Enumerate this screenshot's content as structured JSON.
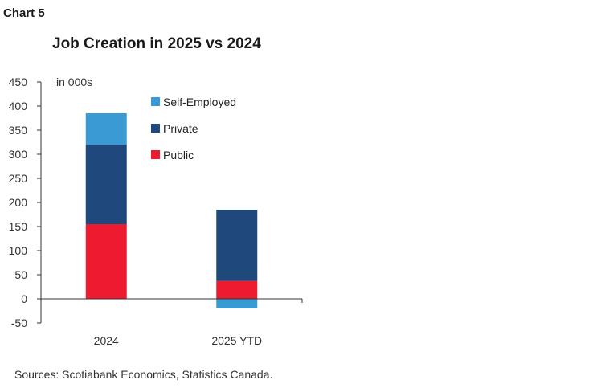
{
  "header": {
    "chart_label": "Chart 5",
    "title": "Job Creation in 2025 vs 2024"
  },
  "source": "Sources: Scotiabank Economics, Statistics Canada.",
  "chart_data": {
    "type": "bar",
    "stacked": true,
    "title": "Job Creation in 2025 vs 2024",
    "unit_label": "in 000s",
    "categories": [
      "2024",
      "2025 YTD"
    ],
    "series": [
      {
        "name": "Public",
        "color": "#ed1b2f",
        "values": [
          155,
          37
        ]
      },
      {
        "name": "Private",
        "color": "#1f497d",
        "values": [
          165,
          148
        ]
      },
      {
        "name": "Self-Employed",
        "color": "#3a9ad3",
        "values": [
          65,
          -20
        ]
      }
    ],
    "legend_order": [
      "Self-Employed",
      "Private",
      "Public"
    ],
    "ylim": [
      -50,
      450
    ],
    "yticks": [
      450,
      400,
      350,
      300,
      250,
      200,
      150,
      100,
      50,
      0,
      -50
    ],
    "grid": false,
    "legend_position": "top-right"
  }
}
